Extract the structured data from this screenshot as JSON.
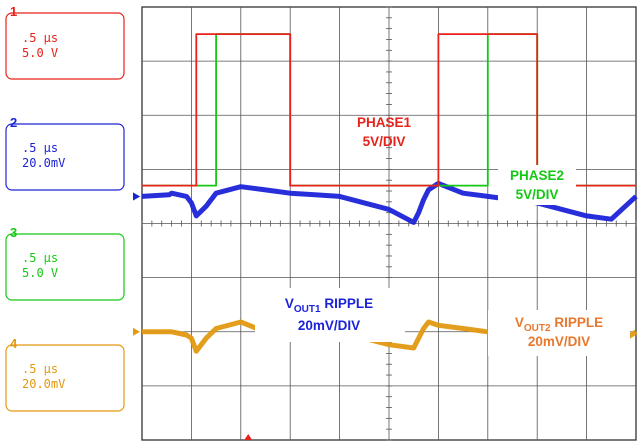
{
  "chart_data": {
    "type": "line",
    "title": "",
    "grid": true,
    "divisions": {
      "x": 10,
      "y": 8
    },
    "time_per_div": ".5 μs",
    "x": [
      0.0,
      0.55,
      0.6,
      0.9,
      1.0,
      1.1,
      1.3,
      1.5,
      2.0,
      2.5,
      3.0,
      3.5,
      4.0,
      4.5,
      5.0,
      5.5,
      5.6,
      5.7,
      5.8,
      6.0,
      6.5,
      7.0,
      7.5,
      8.0,
      8.5,
      9.0,
      9.5,
      10.0
    ],
    "series": [
      {
        "name": "PHASE1",
        "color": "#e8211a",
        "volts_per_div": "5V/DIV",
        "values": [
          0.2,
          0.2,
          0.2,
          0.2,
          0.2,
          3.0,
          3.0,
          3.0,
          3.0,
          3.0,
          0.2,
          0.2,
          0.2,
          0.2,
          0.2,
          0.2,
          0.2,
          0.2,
          0.2,
          3.0,
          3.0,
          3.0,
          3.0,
          0.2,
          0.2,
          0.2,
          0.2,
          0.2
        ]
      },
      {
        "name": "PHASE2",
        "color": "#14c814",
        "volts_per_div": "5V/DIV",
        "values": [
          0.2,
          0.2,
          0.2,
          0.2,
          0.2,
          0.2,
          0.2,
          3.0,
          3.0,
          3.0,
          0.2,
          0.2,
          0.2,
          0.2,
          0.2,
          0.2,
          0.2,
          0.2,
          0.2,
          0.2,
          0.2,
          3.0,
          3.0,
          0.2,
          0.2,
          0.2,
          0.2,
          0.2
        ]
      },
      {
        "name": "VOUT1 RIPPLE",
        "color": "#1c24d8",
        "volts_per_div": "20mV/DIV",
        "values": [
          0.0,
          0.05,
          0.1,
          0.0,
          -0.2,
          -0.6,
          -0.3,
          0.1,
          0.3,
          0.2,
          0.1,
          0.05,
          0.0,
          -0.2,
          -0.4,
          -0.8,
          -0.5,
          -0.1,
          0.2,
          0.4,
          0.1,
          0.0,
          -0.1,
          -0.2,
          -0.4,
          -0.6,
          -0.7,
          0.0
        ]
      },
      {
        "name": "VOUT2 RIPPLE",
        "color": "#e39912",
        "volts_per_div": "20mV/DIV",
        "values": [
          0.0,
          0.0,
          0.0,
          -0.1,
          -0.2,
          -0.6,
          -0.2,
          0.1,
          0.3,
          0.0,
          0.2,
          0.1,
          0.0,
          -0.2,
          -0.4,
          -0.5,
          -0.2,
          0.1,
          0.3,
          0.2,
          0.1,
          0.0,
          -0.1,
          -0.2,
          -0.3,
          -0.4,
          -0.5,
          0.0
        ]
      }
    ]
  },
  "channels": [
    {
      "number": "1",
      "timebase": ".5 μs",
      "scale": "5.0 V",
      "color": "#e8211a"
    },
    {
      "number": "2",
      "timebase": ".5 μs",
      "scale": "20.0mV",
      "color": "#1c24d8"
    },
    {
      "number": "3",
      "timebase": ".5 μs",
      "scale": "5.0 V",
      "color": "#14c814"
    },
    {
      "number": "4",
      "timebase": ".5 μs",
      "scale": "20.0mV",
      "color": "#e39912"
    }
  ],
  "annotations": [
    {
      "line1_main": "PHASE1",
      "line1_sub": "",
      "line1_rest": "",
      "line2": "5V/DIV",
      "color": "#e8211a"
    },
    {
      "line1_main": "PHASE2",
      "line1_sub": "",
      "line1_rest": "",
      "line2": "5V/DIV",
      "color": "#14c814"
    },
    {
      "line1_main": "V",
      "line1_sub": "OUT1",
      "line1_rest": " RIPPLE",
      "line2": "20mV/DIV",
      "color": "#1c24d8"
    },
    {
      "line1_main": "V",
      "line1_sub": "OUT2",
      "line1_rest": " RIPPLE",
      "line2": "20mV/DIV",
      "color": "#e8782e"
    }
  ]
}
